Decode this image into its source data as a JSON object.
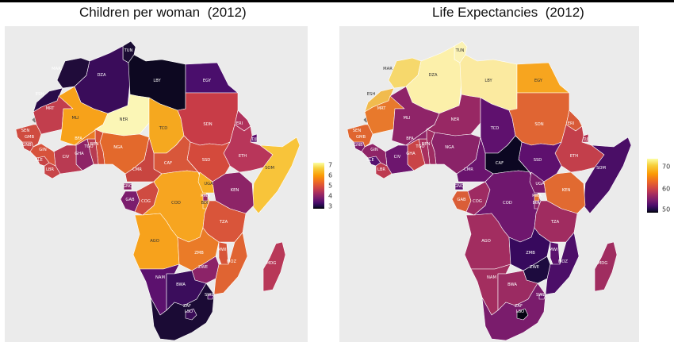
{
  "maps": [
    {
      "title": "Children per woman  (2012)",
      "legend": {
        "ticks": [
          "7",
          "6",
          "5",
          "4",
          "3"
        ],
        "scale": "inferno"
      },
      "countries": {
        "tun": {
          "label": "TUN",
          "color": "#1a0c33"
        },
        "mar": {
          "label": "MAR",
          "color": "#200c3a"
        },
        "esh": {
          "label": "ESH",
          "color": "#2a0b4a"
        },
        "dza": {
          "label": "DZA",
          "color": "#3a0c5a"
        },
        "lby": {
          "label": "LBY",
          "color": "#0d0821"
        },
        "egy": {
          "label": "EGY",
          "color": "#4a0e6c"
        },
        "mrt": {
          "label": "MRT",
          "color": "#c23e4d"
        },
        "mli": {
          "label": "MLI",
          "color": "#f7a21a"
        },
        "ner": {
          "label": "NER",
          "color": "#fbf6b6"
        },
        "tcd": {
          "label": "TCD",
          "color": "#f5a81f"
        },
        "sdn": {
          "label": "SDN",
          "color": "#c83c47"
        },
        "eri": {
          "label": "ERI",
          "color": "#b0325c"
        },
        "dji": {
          "label": "DJI",
          "color": "#5e0f6e"
        },
        "som": {
          "label": "SOM",
          "color": "#f8c43a"
        },
        "eth": {
          "label": "ETH",
          "color": "#b8365a"
        },
        "ssd": {
          "label": "SSD",
          "color": "#d44a3c"
        },
        "caf": {
          "label": "CAF",
          "color": "#d8573a"
        },
        "cmr": {
          "label": "CMR",
          "color": "#c84540"
        },
        "nga": {
          "label": "NGA",
          "color": "#e3692c"
        },
        "ben": {
          "label": "BEN",
          "color": "#d45038"
        },
        "tgo": {
          "label": "TGO",
          "color": "#b73b52"
        },
        "gha": {
          "label": "GHA",
          "color": "#8e2466"
        },
        "civ": {
          "label": "CIV",
          "color": "#b93a52"
        },
        "bfa": {
          "label": "BFA",
          "color": "#eb7b25"
        },
        "lbr": {
          "label": "LBR",
          "color": "#c84548"
        },
        "sle": {
          "label": "SLE",
          "color": "#c74445"
        },
        "gin": {
          "label": "GIN",
          "color": "#d7533c"
        },
        "gnb": {
          "label": "GNB",
          "color": "#c84545"
        },
        "gmb": {
          "label": "GMB",
          "color": "#db5838"
        },
        "sen": {
          "label": "SEN",
          "color": "#cf4c40"
        },
        "gnq": {
          "label": "GNQ",
          "color": "#8a2268"
        },
        "gab": {
          "label": "GAB",
          "color": "#7b1d6d"
        },
        "cog": {
          "label": "COG",
          "color": "#cf4b41"
        },
        "cod": {
          "label": "COD",
          "color": "#f7a520"
        },
        "uga": {
          "label": "UGA",
          "color": "#f6b023"
        },
        "ken": {
          "label": "KEN",
          "color": "#8d2467"
        },
        "rwa": {
          "label": "RWA",
          "color": "#9b2a62"
        },
        "bdi": {
          "label": "BDI",
          "color": "#f19c22"
        },
        "tza": {
          "label": "TZA",
          "color": "#d9553a"
        },
        "ago": {
          "label": "AGO",
          "color": "#f7a21c"
        },
        "zmb": {
          "label": "ZMB",
          "color": "#ea7b28"
        },
        "mwi": {
          "label": "MWI",
          "color": "#d7563a"
        },
        "moz": {
          "label": "MOZ",
          "color": "#e06432"
        },
        "zwe": {
          "label": "ZWE",
          "color": "#8c2368"
        },
        "nam": {
          "label": "NAM",
          "color": "#5c116e"
        },
        "bwa": {
          "label": "BWA",
          "color": "#3b0d5c"
        },
        "zaf": {
          "label": "ZAF",
          "color": "#1b0b35"
        },
        "swz": {
          "label": "SWZ",
          "color": "#4a0f66"
        },
        "lso": {
          "label": "LSO",
          "color": "#3a0c58"
        },
        "mdg": {
          "label": "MDG",
          "color": "#b83858"
        }
      }
    },
    {
      "title": "Life Expectancies  (2012)",
      "legend": {
        "ticks": [
          "70",
          "60",
          "50"
        ],
        "scale": "inferno"
      },
      "countries": {
        "tun": {
          "label": "TUN",
          "color": "#fbf2b4"
        },
        "mar": {
          "label": "MAR",
          "color": "#f6d86c"
        },
        "esh": {
          "label": "ESH",
          "color": "#f1bb4e"
        },
        "dza": {
          "label": "DZA",
          "color": "#fcf0aa"
        },
        "lby": {
          "label": "LBY",
          "color": "#fbeaa0"
        },
        "egy": {
          "label": "EGY",
          "color": "#f7a51f"
        },
        "mrt": {
          "label": "MRT",
          "color": "#e8792c"
        },
        "mli": {
          "label": "MLI",
          "color": "#8f2468"
        },
        "ner": {
          "label": "NER",
          "color": "#982864"
        },
        "tcd": {
          "label": "TCD",
          "color": "#5f116e"
        },
        "sdn": {
          "label": "SDN",
          "color": "#e06533"
        },
        "eri": {
          "label": "ERI",
          "color": "#d85a38"
        },
        "dji": {
          "label": "DJI",
          "color": "#b23554"
        },
        "som": {
          "label": "SOM",
          "color": "#4a0e66"
        },
        "eth": {
          "label": "ETH",
          "color": "#c33f4b"
        },
        "ssd": {
          "label": "SSD",
          "color": "#5e106e"
        },
        "caf": {
          "label": "CAF",
          "color": "#0c0722"
        },
        "cmr": {
          "label": "CMR",
          "color": "#6a146e"
        },
        "nga": {
          "label": "NGA",
          "color": "#8a2368"
        },
        "ben": {
          "label": "BEN",
          "color": "#9e2c62"
        },
        "tgo": {
          "label": "TGO",
          "color": "#a82f5e"
        },
        "gha": {
          "label": "GHA",
          "color": "#c94447"
        },
        "civ": {
          "label": "CIV",
          "color": "#6d166e"
        },
        "bfa": {
          "label": "BFA",
          "color": "#8e2467"
        },
        "lbr": {
          "label": "LBR",
          "color": "#bd3b50"
        },
        "sle": {
          "label": "SLE",
          "color": "#541070"
        },
        "gin": {
          "label": "GIN",
          "color": "#8f2467"
        },
        "gnb": {
          "label": "GNB",
          "color": "#7d1d6c"
        },
        "gmb": {
          "label": "GMB",
          "color": "#c7424a"
        },
        "sen": {
          "label": "SEN",
          "color": "#e0662f"
        },
        "gnq": {
          "label": "GNQ",
          "color": "#5d116e"
        },
        "gab": {
          "label": "GAB",
          "color": "#da5e37"
        },
        "cog": {
          "label": "COG",
          "color": "#9e2b62"
        },
        "cod": {
          "label": "COD",
          "color": "#6f176e"
        },
        "uga": {
          "label": "UGA",
          "color": "#7b1c6c"
        },
        "ken": {
          "label": "KEN",
          "color": "#e16a31"
        },
        "rwa": {
          "label": "RWA",
          "color": "#e2712e"
        },
        "bdi": {
          "label": "BDI",
          "color": "#8b2268"
        },
        "tza": {
          "label": "TZA",
          "color": "#a02c60"
        },
        "ago": {
          "label": "AGO",
          "color": "#a22d60"
        },
        "zmb": {
          "label": "ZMB",
          "color": "#37095d"
        },
        "mwi": {
          "label": "MWI",
          "color": "#5b126e"
        },
        "moz": {
          "label": "MOZ",
          "color": "#4c0e68"
        },
        "zwe": {
          "label": "ZWE",
          "color": "#1d0b3e"
        },
        "nam": {
          "label": "NAM",
          "color": "#a32e5f"
        },
        "bwa": {
          "label": "BWA",
          "color": "#9b2b62"
        },
        "zaf": {
          "label": "ZAF",
          "color": "#7a1c6c"
        },
        "swz": {
          "label": "SWZ",
          "color": "#6a156e"
        },
        "lso": {
          "label": "LSO",
          "color": "#050413"
        },
        "mdg": {
          "label": "MDG",
          "color": "#a02d60"
        }
      }
    }
  ],
  "colors": {
    "background": "#ebebeb",
    "border": "#ffffff",
    "missing": "#7f7f7f"
  }
}
